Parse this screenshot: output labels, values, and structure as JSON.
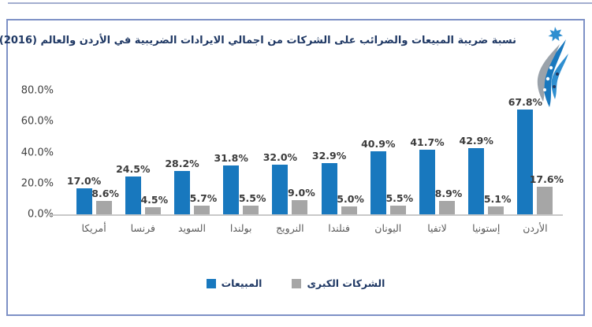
{
  "chart": {
    "title": "نسبة ضريبة المبيعات والضرائب على الشركات من اجمالي الايرادات الضريبية في الأردن والعالم (2016)",
    "legend": [
      {
        "label": "المبيعات",
        "color": "#1878be"
      },
      {
        "label": "الشركات الكبرى",
        "color": "#a6a6a6"
      }
    ],
    "colors": {
      "sales": "#1878be",
      "corporate": "#a6a6a6",
      "title_text": "#1f3864",
      "frame_border": "#7e91c6",
      "logo_icon": "logo-emblem-blue-gray-star"
    }
  },
  "chart_data": {
    "type": "bar",
    "title": "نسبة ضريبة المبيعات والضرائب على الشركات من اجمالي الايرادات الضريبية في الأردن والعالم (2016)",
    "categories": [
      "أمريكا",
      "فرنسا",
      "السويد",
      "بولندا",
      "النرويج",
      "فنلندا",
      "اليونان",
      "لاتفيا",
      "إستونيا",
      "الأردن"
    ],
    "series": [
      {
        "name": "المبيعات",
        "color": "#1878be",
        "values": [
          17.0,
          24.5,
          28.2,
          31.8,
          32.0,
          32.9,
          40.9,
          41.7,
          42.9,
          67.8
        ],
        "labels": [
          "17.0%",
          "24.5%",
          "28.2%",
          "31.8%",
          "32.0%",
          "32.9%",
          "40.9%",
          "41.7%",
          "42.9%",
          "67.8%"
        ]
      },
      {
        "name": "الشركات الكبرى",
        "color": "#a6a6a6",
        "values": [
          8.6,
          4.5,
          5.7,
          5.5,
          9.0,
          5.0,
          5.5,
          8.9,
          5.1,
          17.6
        ],
        "labels": [
          "8.6%",
          "4.5%",
          "5.7%",
          "5.5%",
          "9.0%",
          "5.0%",
          "5.5%",
          "8.9%",
          "5.1%",
          "17.6%"
        ]
      }
    ],
    "y_ticks": [
      {
        "label": "80.0%",
        "value": 80
      },
      {
        "label": "60.0%",
        "value": 60
      },
      {
        "label": "40.0%",
        "value": 40
      },
      {
        "label": "20.0%",
        "value": 20
      },
      {
        "label": "0.0%",
        "value": 0
      }
    ],
    "ylim": [
      0,
      80
    ],
    "grid": false,
    "value_labels_shown": true,
    "legend_position": "bottom",
    "xlabel": "",
    "ylabel": ""
  }
}
